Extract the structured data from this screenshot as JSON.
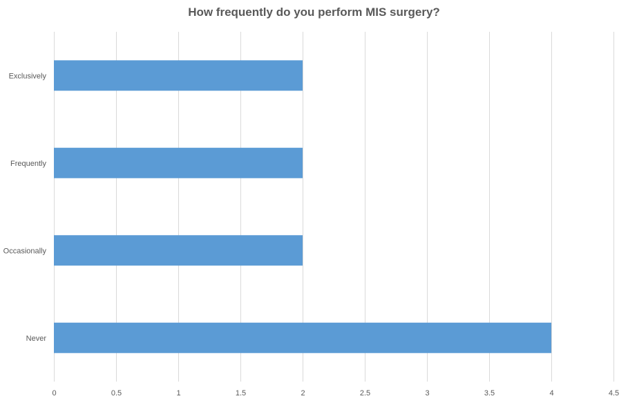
{
  "chart_data": {
    "type": "bar",
    "orientation": "horizontal",
    "title": "How frequently do you perform MIS surgery?",
    "categories": [
      "Exclusively",
      "Frequently",
      "Occasionally",
      "Never"
    ],
    "values": [
      2,
      2,
      2,
      4
    ],
    "xlabel": "",
    "ylabel": "",
    "xlim": [
      0,
      4.5
    ],
    "x_ticks": [
      "0",
      "0.5",
      "1",
      "1.5",
      "2",
      "2.5",
      "3",
      "3.5",
      "4",
      "4.5"
    ],
    "grid": "vertical",
    "legend": "none",
    "colors": {
      "bar": "#5b9bd5",
      "grid": "#d9d9d9",
      "text": "#595959"
    }
  }
}
